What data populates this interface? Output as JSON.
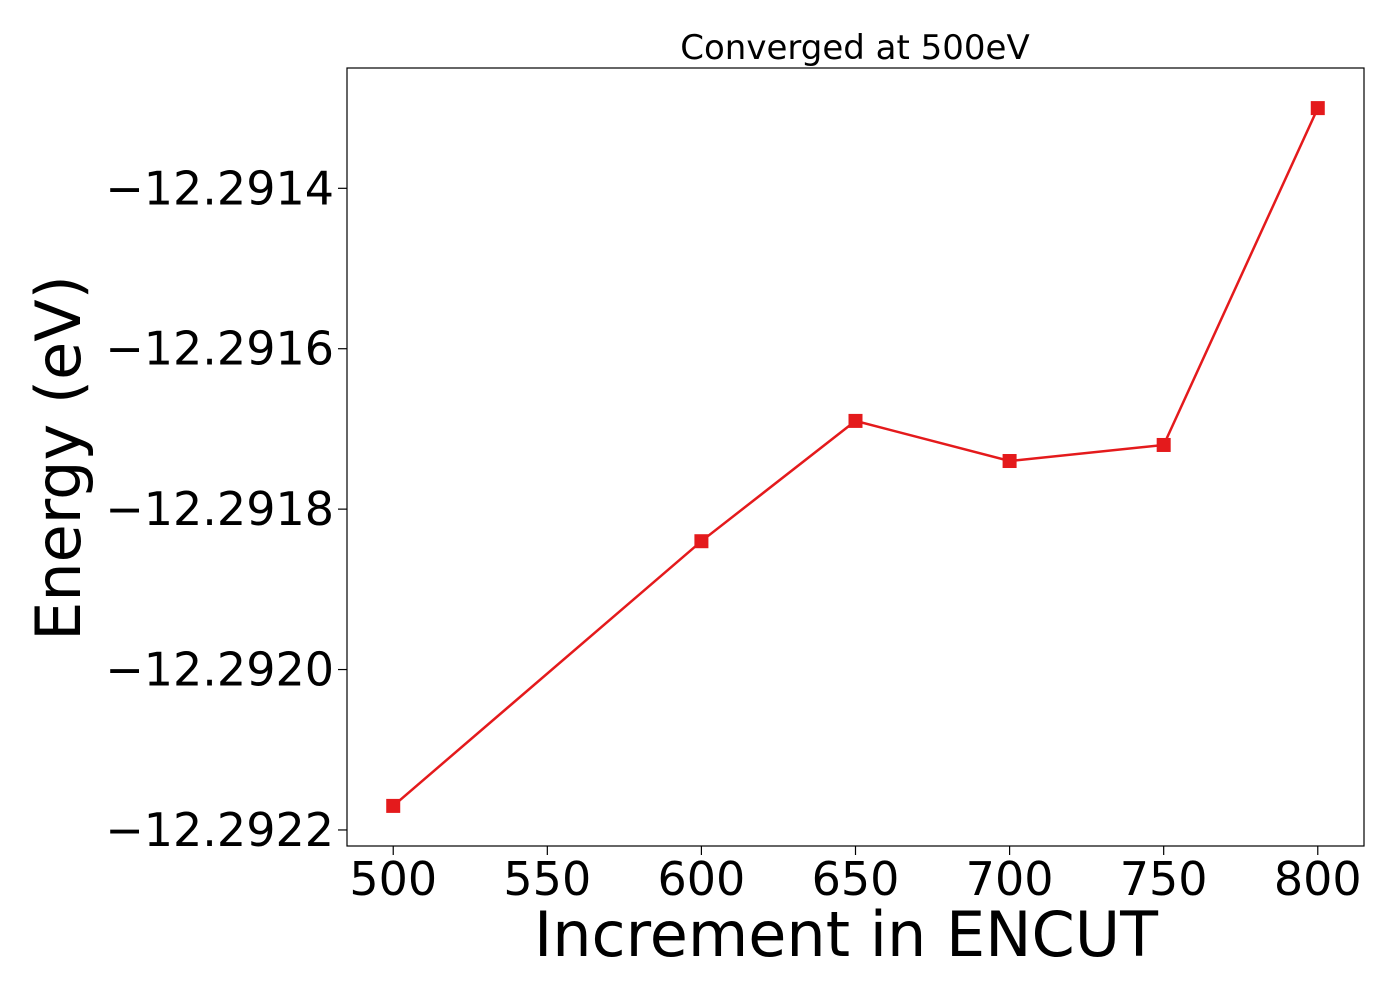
{
  "chart_data": {
    "type": "line",
    "title": "Converged at 500eV",
    "xlabel": "Increment in ENCUT",
    "ylabel": "Energy (eV)",
    "x": [
      500,
      600,
      650,
      700,
      750,
      800
    ],
    "series": [
      {
        "values": [
          -12.29217,
          -12.29184,
          -12.29169,
          -12.29174,
          -12.29172,
          -12.2913
        ],
        "color": "#e41a1c",
        "marker": "square"
      }
    ],
    "xlim": [
      485,
      815
    ],
    "ylim": [
      -12.29222,
      -12.29125
    ],
    "xticks": [
      500,
      550,
      600,
      650,
      700,
      750,
      800
    ],
    "xtick_labels": [
      "500",
      "550",
      "600",
      "650",
      "700",
      "750",
      "800"
    ],
    "yticks": [
      -12.2914,
      -12.2916,
      -12.2918,
      -12.292,
      -12.2922
    ],
    "ytick_labels": [
      "−12.2914",
      "−12.2916",
      "−12.2918",
      "−12.2920",
      "−12.2922"
    ],
    "grid": false,
    "legend": false
  }
}
